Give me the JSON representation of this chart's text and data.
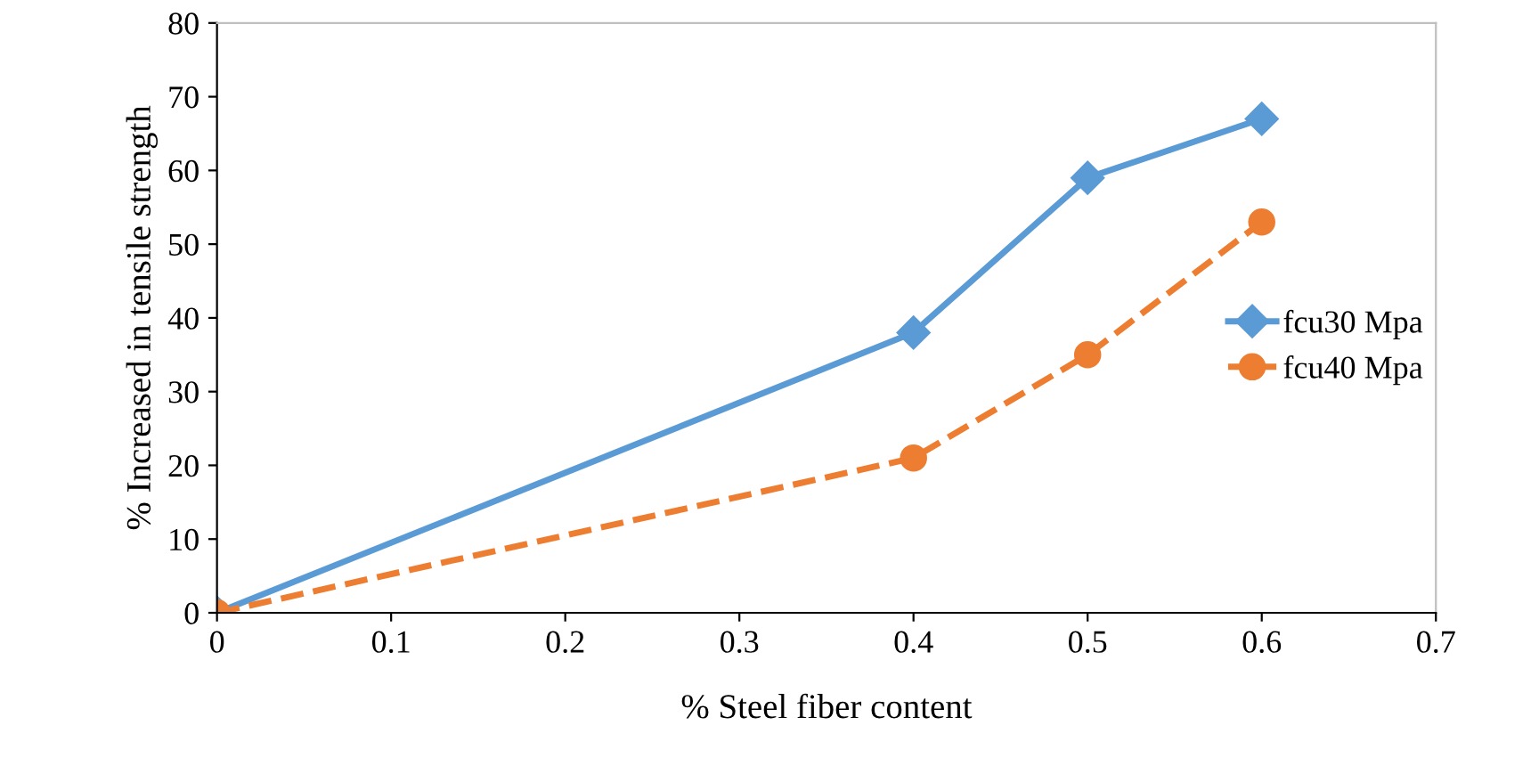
{
  "chart_data": {
    "type": "line",
    "xlabel": "% Steel fiber content",
    "ylabel": "% Increased in tensile strength",
    "x": [
      0,
      0.4,
      0.5,
      0.6
    ],
    "series": [
      {
        "name": "fcu30 Mpa",
        "color": "#5b9bd5",
        "values": [
          0,
          38,
          59,
          67
        ],
        "marker": "diamond",
        "line_style": "solid"
      },
      {
        "name": "fcu40 Mpa",
        "color": "#ed7d31",
        "values": [
          0,
          21,
          35,
          53
        ],
        "marker": "circle",
        "line_style": "dashed"
      }
    ],
    "xlim": [
      0,
      0.7
    ],
    "xticks": [
      0,
      0.1,
      0.2,
      0.3,
      0.4,
      0.5,
      0.6,
      0.7
    ],
    "ylim": [
      0,
      80
    ],
    "yticks": [
      0,
      10,
      20,
      30,
      40,
      50,
      60,
      70,
      80
    ],
    "grid": false,
    "legend": "right"
  }
}
